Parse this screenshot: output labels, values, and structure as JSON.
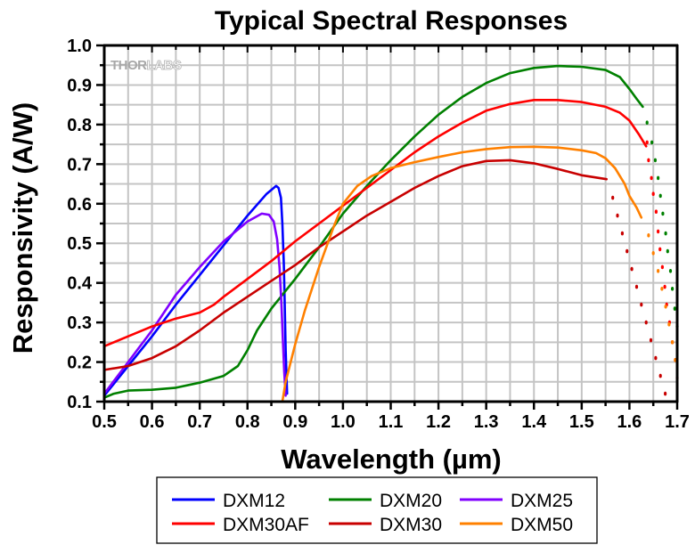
{
  "chart_data": {
    "type": "line",
    "title": "Typical Spectral Responses",
    "xlabel": "Wavelength (µm)",
    "ylabel": "Responsivity (A/W)",
    "xlim": [
      0.5,
      1.7
    ],
    "ylim": [
      0.1,
      1.0
    ],
    "xticks": [
      0.5,
      0.6,
      0.7,
      0.8,
      0.9,
      1.0,
      1.1,
      1.2,
      1.3,
      1.4,
      1.5,
      1.6,
      1.7
    ],
    "xtick_labels": [
      "0.5",
      "0.6",
      "0.7",
      "0.8",
      "0.9",
      "1.0",
      "1.1",
      "1.2",
      "1.3",
      "1.4",
      "1.5",
      "1.6",
      "1.7"
    ],
    "yticks": [
      0.1,
      0.2,
      0.3,
      0.4,
      0.5,
      0.6,
      0.7,
      0.8,
      0.9,
      1.0
    ],
    "ytick_labels": [
      "0.1",
      "0.2",
      "0.3",
      "0.4",
      "0.5",
      "0.6",
      "0.7",
      "0.8",
      "0.9",
      "1.0"
    ],
    "grid": true,
    "watermark": {
      "bold": "THOR",
      "light": "LABS"
    },
    "legend_position": "bottom-center",
    "series": [
      {
        "name": "DXM12",
        "color": "#0000ff",
        "x": [
          0.5,
          0.55,
          0.6,
          0.65,
          0.7,
          0.75,
          0.8,
          0.84,
          0.86,
          0.865,
          0.87,
          0.873,
          0.876,
          0.878,
          0.88,
          0.883
        ],
        "y": [
          0.115,
          0.19,
          0.265,
          0.345,
          0.42,
          0.495,
          0.57,
          0.625,
          0.645,
          0.64,
          0.615,
          0.55,
          0.45,
          0.35,
          0.23,
          0.12
        ]
      },
      {
        "name": "DXM20",
        "color": "#008000",
        "x": [
          0.5,
          0.52,
          0.55,
          0.6,
          0.65,
          0.7,
          0.75,
          0.78,
          0.8,
          0.82,
          0.85,
          0.9,
          0.95,
          1.0,
          1.05,
          1.1,
          1.15,
          1.2,
          1.25,
          1.3,
          1.35,
          1.4,
          1.45,
          1.5,
          1.55,
          1.58,
          1.6,
          1.615,
          1.628
        ],
        "y": [
          0.11,
          0.12,
          0.128,
          0.13,
          0.135,
          0.148,
          0.165,
          0.19,
          0.23,
          0.28,
          0.335,
          0.41,
          0.49,
          0.575,
          0.645,
          0.71,
          0.77,
          0.825,
          0.87,
          0.905,
          0.93,
          0.943,
          0.948,
          0.946,
          0.938,
          0.92,
          0.89,
          0.865,
          0.845
        ],
        "dotted_tail": {
          "x": [
            1.637,
            1.647,
            1.654,
            1.66,
            1.665,
            1.67,
            1.676,
            1.68,
            1.686,
            1.69,
            1.695,
            1.7
          ],
          "y": [
            0.805,
            0.755,
            0.71,
            0.665,
            0.62,
            0.575,
            0.525,
            0.48,
            0.43,
            0.385,
            0.335,
            0.29
          ]
        }
      },
      {
        "name": "DXM25",
        "color": "#8000ff",
        "x": [
          0.5,
          0.55,
          0.6,
          0.65,
          0.7,
          0.75,
          0.8,
          0.83,
          0.845,
          0.855,
          0.862,
          0.867,
          0.871,
          0.874,
          0.877,
          0.88
        ],
        "y": [
          0.12,
          0.2,
          0.28,
          0.37,
          0.44,
          0.505,
          0.555,
          0.575,
          0.572,
          0.555,
          0.51,
          0.44,
          0.35,
          0.26,
          0.175,
          0.115
        ]
      },
      {
        "name": "DXM30AF",
        "color": "#ff0000",
        "x": [
          0.5,
          0.55,
          0.6,
          0.65,
          0.7,
          0.73,
          0.75,
          0.8,
          0.85,
          0.9,
          0.95,
          1.0,
          1.05,
          1.1,
          1.15,
          1.2,
          1.25,
          1.3,
          1.35,
          1.4,
          1.45,
          1.5,
          1.55,
          1.58,
          1.6,
          1.62,
          1.635
        ],
        "y": [
          0.24,
          0.265,
          0.29,
          0.31,
          0.325,
          0.345,
          0.365,
          0.41,
          0.455,
          0.505,
          0.55,
          0.595,
          0.64,
          0.685,
          0.73,
          0.77,
          0.805,
          0.835,
          0.852,
          0.862,
          0.862,
          0.857,
          0.845,
          0.83,
          0.81,
          0.775,
          0.745
        ],
        "dotted_tail": {
          "x": [
            1.637,
            1.64,
            1.646,
            1.65,
            1.656,
            1.66,
            1.664,
            1.669,
            1.674,
            1.678,
            1.684,
            1.69,
            1.696,
            1.7
          ],
          "y": [
            0.755,
            0.71,
            0.665,
            0.625,
            0.58,
            0.53,
            0.485,
            0.44,
            0.39,
            0.345,
            0.3,
            0.25,
            0.205,
            0.16
          ]
        }
      },
      {
        "name": "DXM30",
        "color": "#c80000",
        "x": [
          0.5,
          0.55,
          0.6,
          0.65,
          0.7,
          0.75,
          0.8,
          0.85,
          0.9,
          0.95,
          1.0,
          1.05,
          1.1,
          1.15,
          1.2,
          1.25,
          1.3,
          1.35,
          1.4,
          1.45,
          1.5,
          1.552
        ],
        "y": [
          0.18,
          0.19,
          0.21,
          0.24,
          0.28,
          0.325,
          0.365,
          0.405,
          0.445,
          0.49,
          0.53,
          0.57,
          0.605,
          0.64,
          0.67,
          0.695,
          0.708,
          0.71,
          0.702,
          0.688,
          0.672,
          0.662
        ],
        "dotted_tail": {
          "x": [
            1.565,
            1.575,
            1.585,
            1.595,
            1.605,
            1.615,
            1.625,
            1.635,
            1.645,
            1.655,
            1.665,
            1.675
          ],
          "y": [
            0.615,
            0.57,
            0.525,
            0.48,
            0.435,
            0.39,
            0.345,
            0.3,
            0.255,
            0.21,
            0.165,
            0.12
          ]
        }
      },
      {
        "name": "DXM50",
        "color": "#ff8000",
        "x": [
          0.873,
          0.88,
          0.9,
          0.92,
          0.95,
          0.98,
          1.0,
          1.03,
          1.06,
          1.1,
          1.15,
          1.2,
          1.25,
          1.3,
          1.35,
          1.4,
          1.45,
          1.5,
          1.53,
          1.55,
          1.57,
          1.59,
          1.6,
          1.615,
          1.625
        ],
        "y": [
          0.1,
          0.15,
          0.245,
          0.33,
          0.44,
          0.54,
          0.6,
          0.645,
          0.67,
          0.69,
          0.705,
          0.718,
          0.73,
          0.738,
          0.743,
          0.744,
          0.742,
          0.735,
          0.728,
          0.715,
          0.69,
          0.65,
          0.62,
          0.59,
          0.565
        ],
        "dotted_tail": {
          "x": [
            1.64,
            1.65,
            1.66,
            1.668,
            1.676,
            1.683,
            1.69,
            1.696
          ],
          "y": [
            0.52,
            0.475,
            0.43,
            0.385,
            0.34,
            0.295,
            0.25,
            0.205
          ]
        }
      }
    ]
  }
}
